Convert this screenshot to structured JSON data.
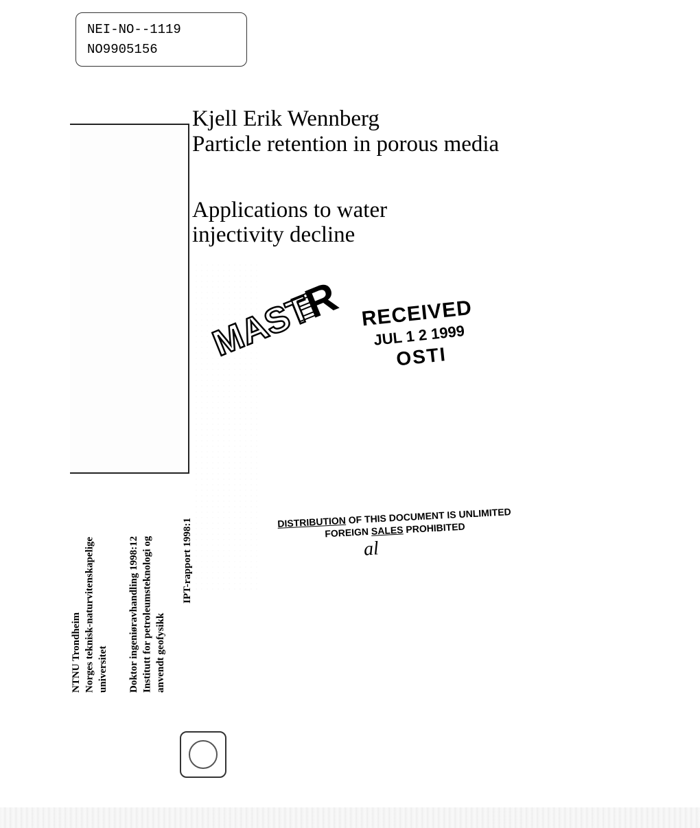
{
  "header": {
    "id1": "NEI-NO--1119",
    "id2": "NO9905156"
  },
  "front": {
    "author": "Kjell Erik Wennberg",
    "title": "Particle retention in porous media",
    "subtitle": "Applications to water injectivity decline"
  },
  "sidebar": {
    "institution_line1": "NTNU  Trondheim",
    "institution_line2": "Norges teknisk-naturvitenskapelige",
    "institution_line3": "universitet",
    "thesis_line1": "Doktor ingeniøravhandling 1998:12",
    "thesis_line2": "Institutt for petroleumsteknologi og",
    "thesis_line3": "anvendt geofysikk",
    "report": "IPT-rapport 1998:1"
  },
  "stamps": {
    "master": "MASTER",
    "received": "RECEIVED",
    "received_date": "JUL 1 2 1999",
    "received_org": "OSTI",
    "distribution_line1_pre": "DISTRIBUTION",
    "distribution_line1_mid": " OF THIS DOCUMENT IS UNLIMITED",
    "distribution_line2_pre": "FOREIGN ",
    "distribution_line2_mid": "SALES",
    "distribution_line2_post": " PROHIBITED",
    "signature": "al"
  },
  "colors": {
    "text": "#111111",
    "border": "#222222",
    "background": "#ffffff"
  },
  "typography": {
    "title_fontsize": 33,
    "id_fontsize": 19,
    "vtext_fontsize": 15,
    "stamp_received_fontsize": 30,
    "stamp_distribution_fontsize": 14
  }
}
